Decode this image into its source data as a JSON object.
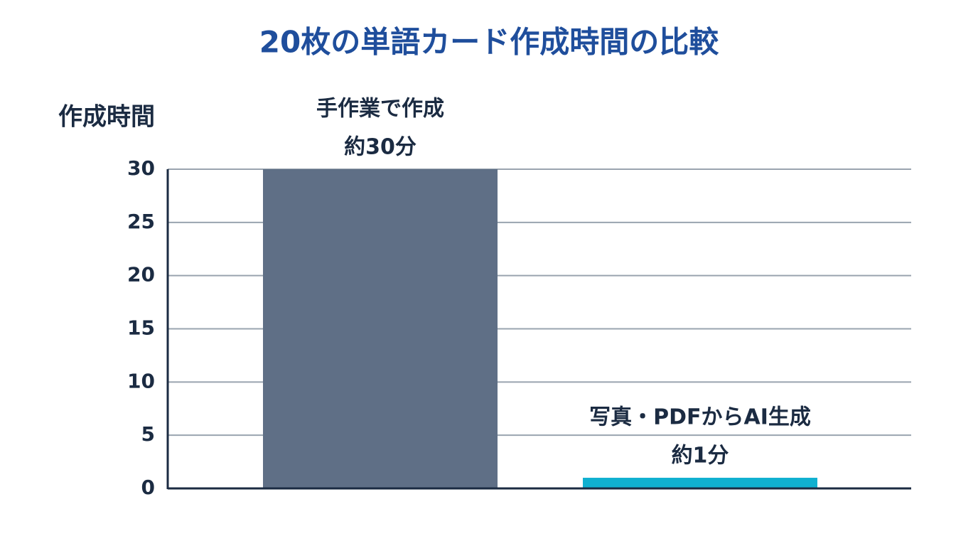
{
  "chart_data": {
    "type": "bar",
    "title": "20枚の単語カード作成時間の比較",
    "y_label": "作成時間",
    "categories": [
      "手作業で作成",
      "写真・PDFからAI生成"
    ],
    "values": [
      30,
      1
    ],
    "value_labels": [
      "約30分",
      "約1分"
    ],
    "colors": [
      "#5f6f86",
      "#0fb0d0"
    ],
    "ylim": [
      0,
      30
    ],
    "yticks": [
      0,
      5,
      10,
      15,
      20,
      25,
      30
    ],
    "grid": true
  }
}
